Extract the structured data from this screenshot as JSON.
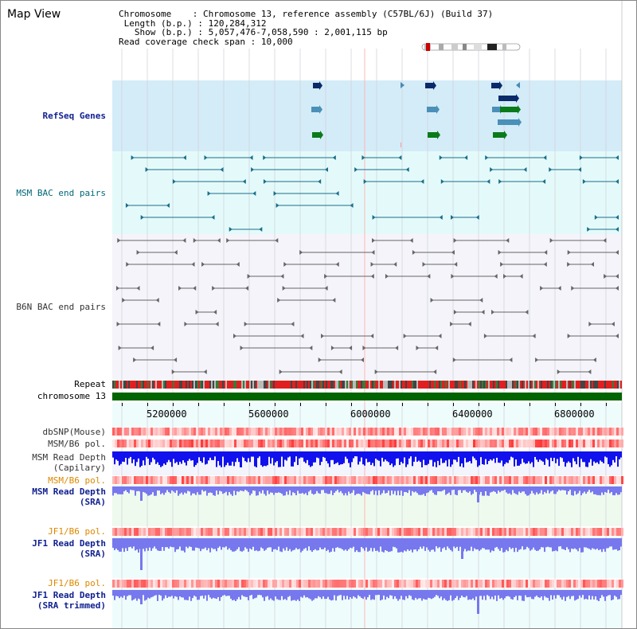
{
  "title": "Map View",
  "info": {
    "chromosome_key": "Chromosome",
    "chromosome_value": "Chromosome 13, reference assembly (C57BL/6J) (Build 37)",
    "length_key": "Length (b.p.)",
    "length_value": "120,284,312",
    "show_key": "Show (b.p.)",
    "show_value": "5,057,476-7,058,590 : 2,001,115 bp",
    "coverage_key": "Read coverage check span",
    "coverage_value": "10,000"
  },
  "tracks": {
    "refseq": "RefSeq Genes",
    "msm_bac": "MSM BAC end pairs",
    "b6n_bac": "B6N BAC end pairs",
    "repeat": "Repeat",
    "chromosome": "chromosome 13",
    "dbsnp": "dbSNP(Mouse)",
    "msm_pol_1": "MSM/B6 pol.",
    "msm_depth_cap_1": "MSM Read Depth",
    "msm_depth_cap_2": "(Capilary)",
    "msm_pol_2": "MSM/B6 pol.",
    "msm_depth_sra_1": "MSM Read Depth",
    "msm_depth_sra_2": "(SRA)",
    "jf1_pol_1": "JF1/B6 pol.",
    "jf1_depth_sra_1": "JF1 Read Depth",
    "jf1_depth_sra_2": "(SRA)",
    "jf1_pol_2": "JF1/B6 pol.",
    "jf1_depth_trim_1": "JF1 Read Depth",
    "jf1_depth_trim_2": "(SRA trimmed)"
  },
  "axis_ticks": [
    "5200000",
    "5600000",
    "6000000",
    "6400000",
    "6800000"
  ],
  "colors": {
    "refseq_bg": "#d4ecf8",
    "msm_bg": "#e4fafa",
    "b6n_bg": "#f4f4fa",
    "chrom_bar": "#006400",
    "depth_blue": "#1111ee",
    "depth_light": "#7777ee",
    "pol_red": "#ff6060"
  }
}
